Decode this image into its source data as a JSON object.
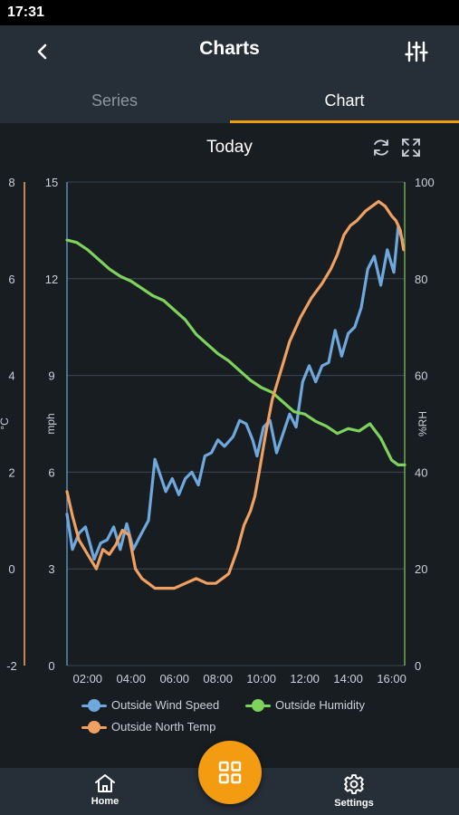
{
  "status_bar": {
    "time": "17:31"
  },
  "header": {
    "title": "Charts"
  },
  "tabs": [
    {
      "label": "Series",
      "active": false
    },
    {
      "label": "Chart",
      "active": true
    }
  ],
  "chart_header": {
    "title": "Today"
  },
  "bottom_nav": {
    "home_label": "Home",
    "settings_label": "Settings"
  },
  "colors": {
    "accent": "#f39c12",
    "wind": "#6fa8dc",
    "humidity": "#7ed35c",
    "temp": "#f0a060"
  },
  "chart_data": {
    "type": "line",
    "xlabel": "",
    "x_tick_labels": [
      "02:00",
      "04:00",
      "06:00",
      "08:00",
      "10:00",
      "12:00",
      "14:00",
      "16:00"
    ],
    "xlim": [
      1.05,
      16.6
    ],
    "axes": {
      "mph": {
        "label": "mph",
        "ylim": [
          0,
          15
        ],
        "ticks": [
          "0",
          "3",
          "6",
          "9",
          "12",
          "15"
        ]
      },
      "celsius": {
        "label": "°C",
        "ylim": [
          -2,
          8
        ],
        "ticks": [
          "-2",
          "0",
          "2",
          "4",
          "6",
          "8"
        ]
      },
      "humidity": {
        "label": "%RH",
        "ylim": [
          0,
          100
        ],
        "ticks": [
          "0",
          "20",
          "40",
          "60",
          "80",
          "100"
        ]
      }
    },
    "series": [
      {
        "name": "Outside Wind Speed",
        "axis": "mph",
        "color": "#6fa8dc",
        "x": [
          1.05,
          1.3,
          1.6,
          1.9,
          2.3,
          2.6,
          2.9,
          3.2,
          3.5,
          3.8,
          4.1,
          4.4,
          4.8,
          5.1,
          5.4,
          5.6,
          5.9,
          6.2,
          6.5,
          6.8,
          7.1,
          7.4,
          7.7,
          8.0,
          8.3,
          8.7,
          9.0,
          9.3,
          9.6,
          9.8,
          10.1,
          10.4,
          10.7,
          11.0,
          11.3,
          11.6,
          11.9,
          12.2,
          12.5,
          12.8,
          13.1,
          13.4,
          13.7,
          14.0,
          14.3,
          14.6,
          14.9,
          15.2,
          15.5,
          15.8,
          16.1,
          16.3,
          16.5
        ],
        "y": [
          4.7,
          3.6,
          4.1,
          4.3,
          3.3,
          3.8,
          3.9,
          4.3,
          3.6,
          4.4,
          3.6,
          4.0,
          4.5,
          6.4,
          5.8,
          5.4,
          5.8,
          5.3,
          5.8,
          6.0,
          5.6,
          6.5,
          6.6,
          7.0,
          6.8,
          7.1,
          7.6,
          7.5,
          7.0,
          6.5,
          7.4,
          7.6,
          6.6,
          7.2,
          7.8,
          7.4,
          8.8,
          9.3,
          8.8,
          9.3,
          9.4,
          10.4,
          9.6,
          10.3,
          10.5,
          11.1,
          12.3,
          12.7,
          11.8,
          12.9,
          12.2,
          13.6,
          13.2
        ]
      },
      {
        "name": "Outside Humidity",
        "axis": "humidity",
        "color": "#7ed35c",
        "x": [
          1.05,
          1.5,
          2.0,
          2.5,
          3.0,
          3.5,
          4.0,
          4.5,
          5.0,
          5.5,
          6.0,
          6.5,
          7.0,
          7.5,
          8.0,
          8.5,
          9.0,
          9.5,
          10.0,
          10.5,
          11.0,
          11.5,
          12.0,
          12.5,
          13.0,
          13.5,
          14.0,
          14.5,
          15.0,
          15.5,
          16.0,
          16.3,
          16.6
        ],
        "y": [
          88,
          87.5,
          86,
          84,
          82,
          80.5,
          79.5,
          78,
          76.5,
          75.5,
          73.5,
          71.5,
          68.5,
          66.5,
          64.5,
          63,
          61,
          59,
          57.5,
          56.5,
          54.5,
          52.5,
          52,
          50.5,
          49.5,
          48,
          49,
          48.5,
          50,
          47,
          42.5,
          41.5,
          41.5
        ]
      },
      {
        "name": "Outside North Temp",
        "axis": "celsius",
        "color": "#f0a060",
        "x": [
          1.05,
          1.3,
          1.6,
          2.0,
          2.4,
          2.7,
          3.0,
          3.3,
          3.6,
          3.9,
          4.2,
          4.5,
          4.8,
          5.1,
          5.5,
          6.0,
          6.5,
          7.0,
          7.5,
          7.9,
          8.2,
          8.5,
          8.9,
          9.2,
          9.5,
          9.7,
          9.9,
          10.2,
          10.5,
          10.9,
          11.3,
          11.8,
          12.3,
          12.8,
          13.2,
          13.5,
          13.8,
          14.1,
          14.4,
          14.8,
          15.1,
          15.4,
          15.7,
          16.0,
          16.2,
          16.4,
          16.55
        ],
        "y": [
          1.6,
          1.1,
          0.6,
          0.3,
          0.0,
          0.4,
          0.3,
          0.5,
          0.8,
          0.7,
          0.0,
          -0.2,
          -0.3,
          -0.4,
          -0.4,
          -0.4,
          -0.3,
          -0.2,
          -0.3,
          -0.3,
          -0.2,
          -0.1,
          0.4,
          0.9,
          1.2,
          1.5,
          2.0,
          2.8,
          3.5,
          4.1,
          4.7,
          5.2,
          5.6,
          5.9,
          6.2,
          6.5,
          6.9,
          7.1,
          7.2,
          7.4,
          7.5,
          7.6,
          7.5,
          7.3,
          7.2,
          7.0,
          6.6
        ]
      }
    ]
  }
}
